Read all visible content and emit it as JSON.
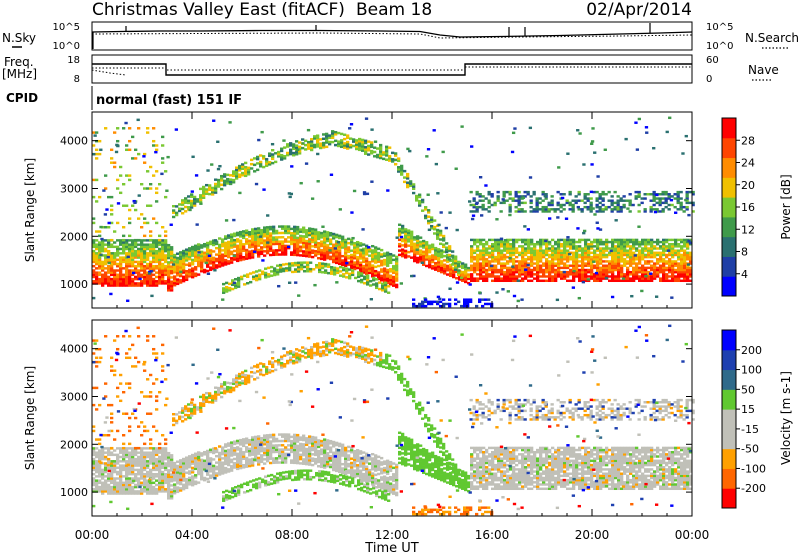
{
  "title": "Christmas Valley East (fitACF)",
  "beam_label": "Beam 18",
  "date": "02/Apr/2014",
  "noise_panel": {
    "left_label": "N.Sky",
    "right_label": "N.Search",
    "left_ticks": [
      "10^5",
      "10^0"
    ],
    "right_ticks": [
      "10^5",
      "10^0"
    ]
  },
  "freq_panel": {
    "left_label_line1": "Freq.",
    "left_label_line2": "[MHz]",
    "right_label": "Nave",
    "left_ticks": [
      "18",
      "8"
    ],
    "right_ticks": [
      "60",
      "0"
    ]
  },
  "cpid_label": "CPID",
  "cpid_text": "normal (fast) 151 IF",
  "colors": {
    "power": [
      "#0000ff",
      "#1f3fa6",
      "#2a7070",
      "#3f9a4a",
      "#7ac832",
      "#f0c000",
      "#ff8c00",
      "#ff4500",
      "#ff0000"
    ],
    "velocity": [
      "#ff0000",
      "#ff6600",
      "#ffa000",
      "#c0c0b8",
      "#c0c0b8",
      "#60c830",
      "#2f6a8a",
      "#1e40b0",
      "#0000ff"
    ]
  },
  "chart_data": [
    {
      "type": "heatmap",
      "panel": "power",
      "xlabel": "",
      "ylabel": "Slant Range [km]",
      "xlim": [
        0,
        24
      ],
      "ylim": [
        500,
        4600
      ],
      "y_ticks": [
        "1000",
        "2000",
        "3000",
        "4000"
      ],
      "colorbar_label": "Power [dB]",
      "colorbar_ticks": [
        "4",
        "8",
        "12",
        "16",
        "20",
        "24",
        "28"
      ],
      "colorbar_range": [
        0,
        32
      ]
    },
    {
      "type": "heatmap",
      "panel": "velocity",
      "xlabel": "Time UT",
      "ylabel": "Slant Range [km]",
      "xlim": [
        0,
        24
      ],
      "ylim": [
        500,
        4600
      ],
      "x_ticks": [
        "00:00",
        "04:00",
        "08:00",
        "12:00",
        "16:00",
        "20:00",
        "00:00"
      ],
      "y_ticks": [
        "1000",
        "2000",
        "3000",
        "4000"
      ],
      "colorbar_label": "Velocity [m s-1]",
      "colorbar_ticks": [
        "-200",
        "-100",
        "-50",
        "-15",
        "15",
        "50",
        "100",
        "200"
      ],
      "colorbar_range": [
        -250,
        250
      ]
    }
  ]
}
